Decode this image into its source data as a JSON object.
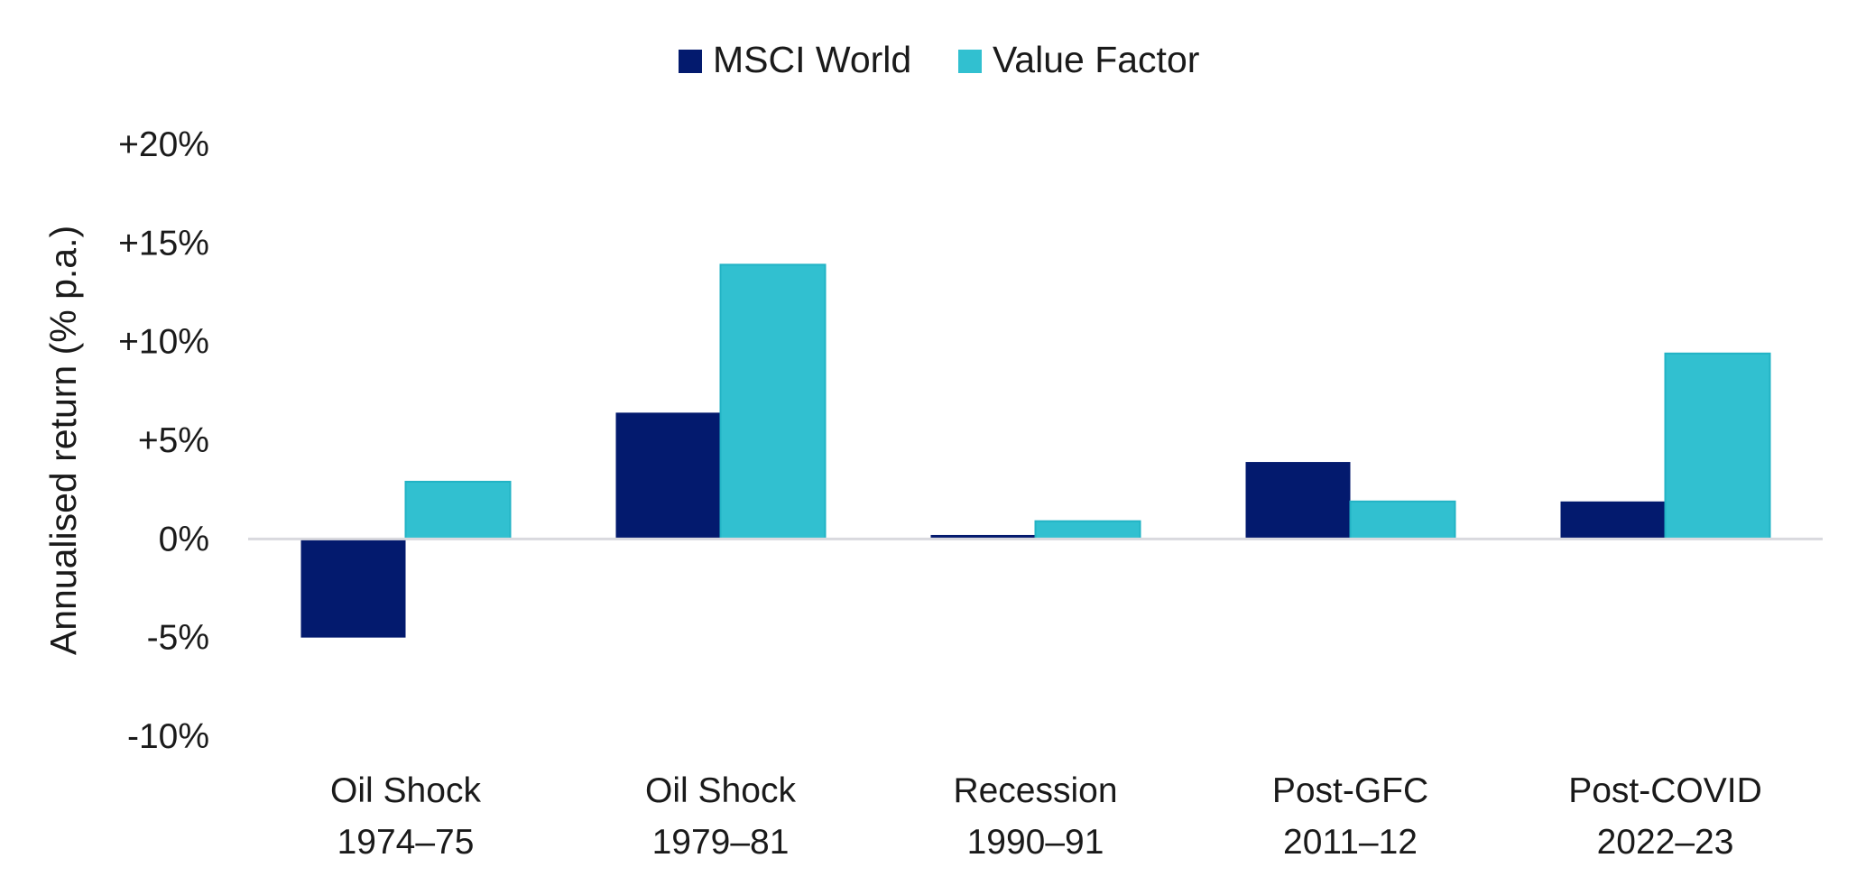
{
  "chart_data": {
    "type": "bar",
    "categories": [
      [
        "Oil Shock",
        "1974–75"
      ],
      [
        "Oil Shock",
        "1979–81"
      ],
      [
        "Recession",
        "1990–91"
      ],
      [
        "Post-GFC",
        "2011–12"
      ],
      [
        "Post-COVID",
        "2022–23"
      ]
    ],
    "series": [
      {
        "name": "MSCI World",
        "color": "#031a6e",
        "values": [
          -5.0,
          6.4,
          0.2,
          3.9,
          1.9
        ]
      },
      {
        "name": "Value Factor",
        "color": "#31c0d0",
        "values": [
          2.9,
          13.9,
          0.9,
          1.9,
          9.4
        ]
      }
    ],
    "ylabel": "Annualised return (% p.a.)",
    "ylim": [
      -10,
      20
    ],
    "yticks": [
      {
        "value": 20,
        "label": "+20%"
      },
      {
        "value": 15,
        "label": "+15%"
      },
      {
        "value": 10,
        "label": "+10%"
      },
      {
        "value": 5,
        "label": "+5%"
      },
      {
        "value": 0,
        "label": "0%"
      },
      {
        "value": -5,
        "label": "-5%"
      },
      {
        "value": -10,
        "label": "-10%"
      }
    ],
    "legend_position": "top-center",
    "grid": false,
    "zero_line_color": "#d9d9de"
  }
}
